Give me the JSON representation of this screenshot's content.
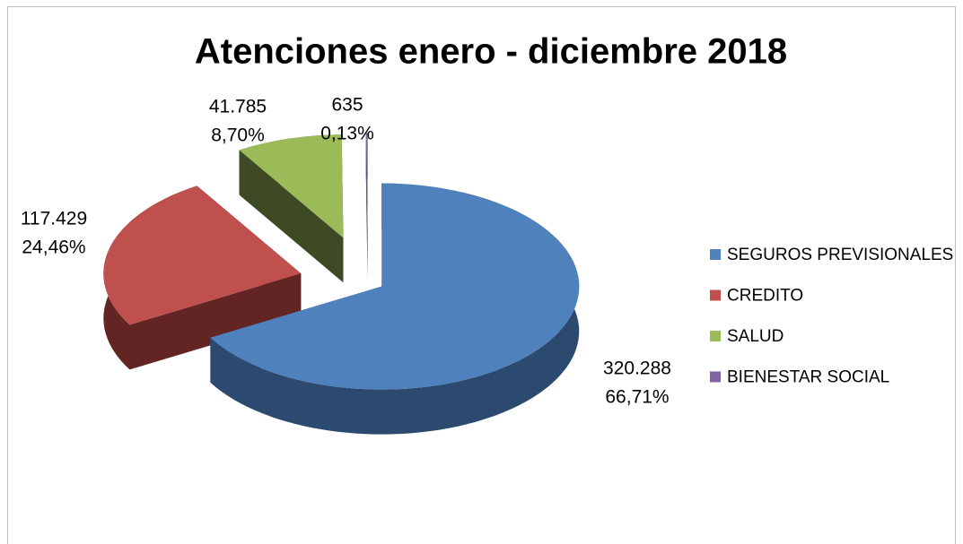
{
  "chart_data": {
    "type": "pie",
    "title": "Atenciones enero - diciembre 2018",
    "categories": [
      "SEGUROS PREVISIONALES",
      "CREDITO",
      "SALUD",
      "BIENESTAR SOCIAL"
    ],
    "values": [
      320288,
      117429,
      41785,
      635
    ],
    "value_labels": [
      "320.288",
      "117.429",
      "41.785",
      "635"
    ],
    "percents": [
      66.71,
      24.46,
      8.7,
      0.13
    ],
    "percent_labels": [
      "66,71%",
      "24,46%",
      "8,70%",
      "0,13%"
    ],
    "colors": [
      "#4f81bd",
      "#c0504d",
      "#9bbb59",
      "#8064a2"
    ],
    "legend": "right"
  }
}
